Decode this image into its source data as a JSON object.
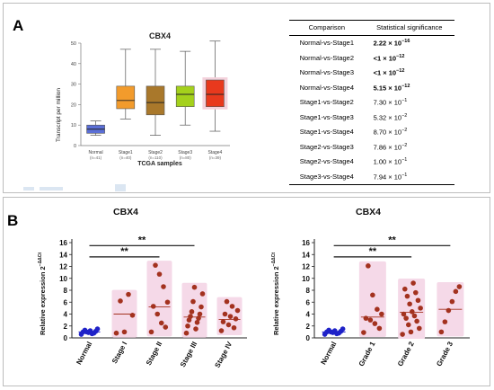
{
  "panels": {
    "a_letter": "A",
    "b_letter": "B"
  },
  "table": {
    "headers": [
      "Comparison",
      "Statistical significance"
    ],
    "rows": [
      {
        "cmp": "Normal-vs-Stage1",
        "base": "2.22 × 10",
        "exp": "−16",
        "bold": true
      },
      {
        "cmp": "Normal-vs-Stage2",
        "base": "<1 × 10",
        "exp": "−12",
        "bold": true
      },
      {
        "cmp": "Normal-vs-Stage3",
        "base": "<1 × 10",
        "exp": "−12",
        "bold": true
      },
      {
        "cmp": "Normal-vs-Stage4",
        "base": "5.15 × 10",
        "exp": "−12",
        "bold": true
      },
      {
        "cmp": "Stage1-vs-Stage2",
        "base": "7.30 × 10",
        "exp": "−1",
        "bold": false
      },
      {
        "cmp": "Stage1-vs-Stage3",
        "base": "5.32 × 10",
        "exp": "−2",
        "bold": false
      },
      {
        "cmp": "Stage1-vs-Stage4",
        "base": "8.70 × 10",
        "exp": "−2",
        "bold": false
      },
      {
        "cmp": "Stage2-vs-Stage3",
        "base": "7.86 × 10",
        "exp": "−2",
        "bold": false
      },
      {
        "cmp": "Stage2-vs-Stage4",
        "base": "1.00 × 10",
        "exp": "−1",
        "bold": false
      },
      {
        "cmp": "Stage3-vs-Stage4",
        "base": "7.94 × 10",
        "exp": "−1",
        "bold": false
      }
    ]
  },
  "chart_data": [
    {
      "type": "box",
      "title": "CBX4",
      "xlabel": "TCGA samples",
      "ylabel": "Transcript per million",
      "ylim": [
        0,
        50
      ],
      "yticks": [
        0,
        10,
        20,
        30,
        40,
        50
      ],
      "categories": [
        "Normal",
        "Stage1",
        "Stage2",
        "Stage3",
        "Stage4"
      ],
      "counts": [
        "(n=41)",
        "(n=40)",
        "(n=110)",
        "(n=80)",
        "(n=39)"
      ],
      "colors": [
        "#5b6fd6",
        "#f29b2c",
        "#a9782b",
        "#a4d11c",
        "#e8391d"
      ],
      "boxes": [
        {
          "min": 5,
          "q1": 6,
          "median": 8,
          "q3": 10,
          "max": 12
        },
        {
          "min": 13,
          "q1": 18,
          "median": 22,
          "q3": 29,
          "max": 47
        },
        {
          "min": 5,
          "q1": 15,
          "median": 21,
          "q3": 29,
          "max": 47
        },
        {
          "min": 10,
          "q1": 19,
          "median": 25,
          "q3": 29,
          "max": 46
        },
        {
          "min": 7,
          "q1": 19,
          "median": 25,
          "q3": 32,
          "max": 51
        }
      ]
    },
    {
      "type": "scatter",
      "title": "CBX4",
      "ylabel_base": "Relative expression 2",
      "ylabel_sup": "−ΔΔCt",
      "ylim": [
        0,
        16
      ],
      "yticks": [
        0,
        2,
        4,
        6,
        8,
        10,
        12,
        14,
        16
      ],
      "categories": [
        "Normal",
        "Stage I",
        "Stage II",
        "Stage III",
        "Stage IV"
      ],
      "means": [
        1,
        4,
        5.2,
        3.5,
        3.1
      ],
      "points": [
        [
          0.6,
          0.8,
          0.9,
          1.0,
          1.1,
          1.2,
          1.3,
          1.5,
          0.7,
          1.0
        ],
        [
          0.8,
          1.0,
          3.8,
          6.2,
          7.3
        ],
        [
          1.0,
          1.8,
          2.5,
          4.0,
          5.3,
          6.0,
          8.6,
          10.7,
          12.2
        ],
        [
          0.8,
          1.5,
          2.0,
          2.6,
          3.0,
          3.3,
          3.6,
          4.0,
          4.4,
          5.2,
          6.1,
          7.4,
          8.5
        ],
        [
          1.2,
          1.7,
          2.2,
          2.7,
          3.2,
          3.6,
          4.0,
          4.6,
          5.3,
          6.1
        ]
      ],
      "significance": [
        {
          "label": "**",
          "from": 0,
          "to": 3,
          "y": 15.5
        },
        {
          "label": "**",
          "from": 0,
          "to": 2,
          "y": 13.6
        }
      ]
    },
    {
      "type": "scatter",
      "title": "CBX4",
      "ylabel_base": "Relative expression 2",
      "ylabel_sup": "−ΔΔCt",
      "ylim": [
        0,
        16
      ],
      "yticks": [
        0,
        2,
        4,
        6,
        8,
        10,
        12,
        14,
        16
      ],
      "categories": [
        "Normal",
        "Grade 1",
        "Grade 2",
        "Grade 3"
      ],
      "means": [
        1,
        3.5,
        4.3,
        4.8
      ],
      "points": [
        [
          0.6,
          0.8,
          0.9,
          1.0,
          1.1,
          1.2,
          1.3,
          1.5,
          0.7,
          1.0
        ],
        [
          0.9,
          1.6,
          2.4,
          3.0,
          3.3,
          4.0,
          4.8,
          7.2,
          12.1
        ],
        [
          0.6,
          1.0,
          1.6,
          2.2,
          2.8,
          3.3,
          3.7,
          4.0,
          4.4,
          5.0,
          5.7,
          6.3,
          7.0,
          7.6,
          8.2,
          9.2
        ],
        [
          1.0,
          2.7,
          4.6,
          6.1,
          7.8,
          8.6
        ]
      ],
      "significance": [
        {
          "label": "**",
          "from": 0,
          "to": 3,
          "y": 15.5
        },
        {
          "label": "**",
          "from": 0,
          "to": 2,
          "y": 13.6
        }
      ]
    }
  ]
}
